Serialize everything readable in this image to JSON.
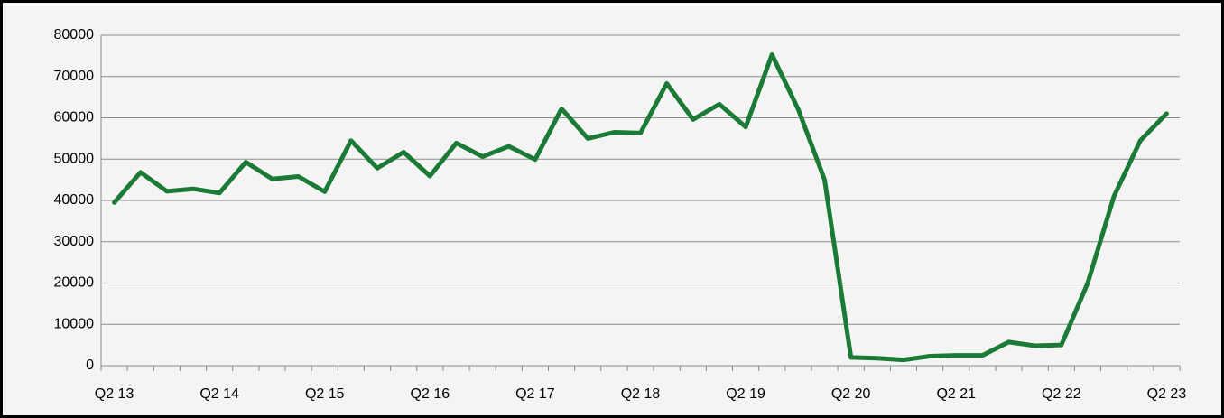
{
  "chart_data": {
    "type": "line",
    "categories": [
      "Q2 13",
      null,
      null,
      null,
      "Q2 14",
      null,
      null,
      null,
      "Q2 15",
      null,
      null,
      null,
      "Q2 16",
      null,
      null,
      null,
      "Q2 17",
      null,
      null,
      null,
      "Q2 18",
      null,
      null,
      null,
      "Q2 19",
      null,
      null,
      null,
      "Q2 20",
      null,
      null,
      null,
      "Q2 21",
      null,
      null,
      null,
      "Q2 22",
      null,
      null,
      null,
      "Q2 23"
    ],
    "values": [
      39500,
      46800,
      42200,
      42800,
      41800,
      49300,
      45200,
      45800,
      42100,
      54500,
      47800,
      51700,
      45900,
      53900,
      50600,
      53100,
      49900,
      62200,
      55000,
      56500,
      56300,
      68300,
      59600,
      63300,
      57800,
      75300,
      62000,
      45000,
      2000,
      1800,
      1400,
      2300,
      2500,
      2500,
      5700,
      4800,
      5000,
      20000,
      41000,
      54500,
      61000
    ],
    "color": "#1a7a36",
    "ylim": [
      0,
      80000
    ],
    "yticks": [
      0,
      10000,
      20000,
      30000,
      40000,
      50000,
      60000,
      70000,
      80000
    ],
    "grid": true
  }
}
